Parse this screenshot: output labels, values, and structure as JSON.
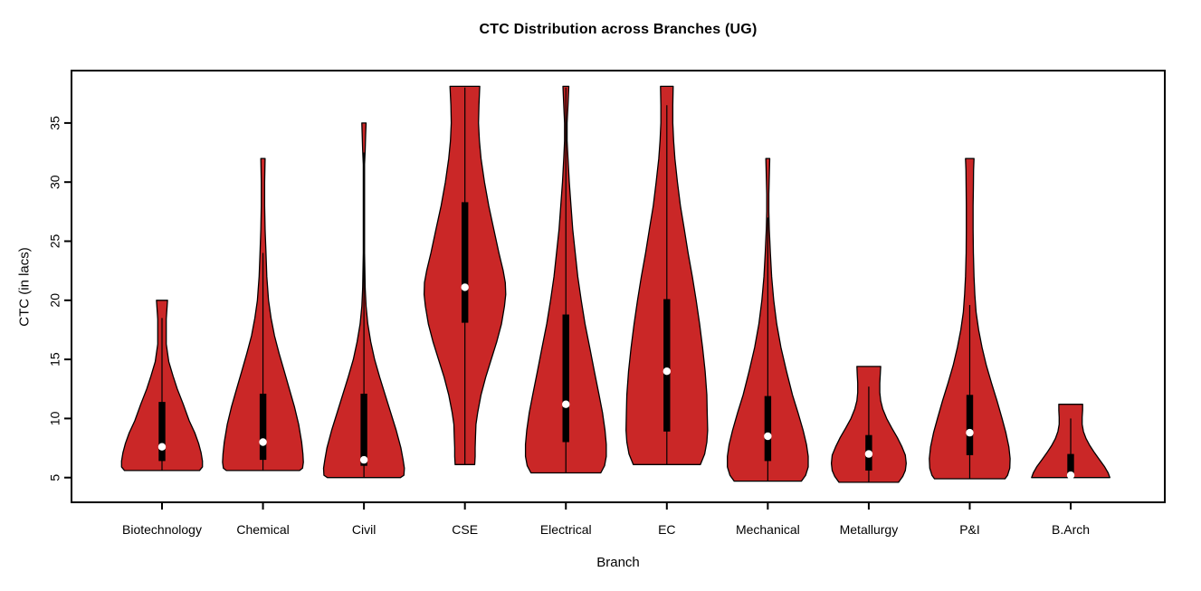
{
  "chart_data": {
    "type": "violin",
    "title": "CTC Distribution across Branches (UG)",
    "xlabel": "Branch",
    "ylabel": "CTC (in lacs)",
    "y_ticks": [
      5,
      10,
      15,
      20,
      25,
      30,
      35
    ],
    "ylim": [
      2.9,
      39.4
    ],
    "grid": false,
    "legend": "none",
    "violin_fill_color": "#CA2727",
    "outline_color": "#000000",
    "iqr_bar_color": "#000000",
    "median_dot_color": "#ffffff",
    "categories": [
      "Biotechnology",
      "Chemical",
      "Civil",
      "CSE",
      "Electrical",
      "EC",
      "Mechanical",
      "Metallurgy",
      "P&I",
      "B.Arch"
    ],
    "series": [
      {
        "branch": "Biotechnology",
        "min": 5.6,
        "max": 20.0,
        "q1": 6.4,
        "median": 7.6,
        "q3": 11.4,
        "whisker_low": 5.6,
        "whisker_high": 18.5,
        "profile": [
          [
            20.0,
            0.13
          ],
          [
            18.4,
            0.1
          ],
          [
            16.3,
            0.1
          ],
          [
            14.8,
            0.16
          ],
          [
            13.6,
            0.26
          ],
          [
            12.5,
            0.36
          ],
          [
            11.2,
            0.5
          ],
          [
            9.8,
            0.64
          ],
          [
            8.8,
            0.77
          ],
          [
            7.9,
            0.86
          ],
          [
            7.1,
            0.92
          ],
          [
            6.4,
            0.95
          ],
          [
            5.9,
            0.95
          ],
          [
            5.6,
            0.88
          ]
        ]
      },
      {
        "branch": "Chemical",
        "min": 5.6,
        "max": 32.0,
        "q1": 6.5,
        "median": 8.0,
        "q3": 12.1,
        "whisker_low": 5.6,
        "whisker_high": 24.0,
        "profile": [
          [
            32.0,
            0.05
          ],
          [
            30.0,
            0.04
          ],
          [
            28.0,
            0.04
          ],
          [
            26.0,
            0.05
          ],
          [
            24.0,
            0.07
          ],
          [
            22.0,
            0.09
          ],
          [
            20.0,
            0.13
          ],
          [
            18.5,
            0.19
          ],
          [
            17.0,
            0.27
          ],
          [
            15.5,
            0.38
          ],
          [
            14.0,
            0.5
          ],
          [
            12.5,
            0.62
          ],
          [
            11.0,
            0.74
          ],
          [
            9.5,
            0.84
          ],
          [
            8.0,
            0.91
          ],
          [
            7.0,
            0.94
          ],
          [
            6.3,
            0.95
          ],
          [
            5.8,
            0.93
          ],
          [
            5.6,
            0.86
          ]
        ]
      },
      {
        "branch": "Civil",
        "min": 5.0,
        "max": 35.0,
        "q1": 6.0,
        "median": 6.5,
        "q3": 12.1,
        "whisker_low": 5.0,
        "whisker_high": 32.5,
        "profile": [
          [
            35.0,
            0.05
          ],
          [
            34.0,
            0.04
          ],
          [
            32.7,
            0.03
          ],
          [
            31.5,
            0.015
          ],
          [
            28.0,
            0.015
          ],
          [
            24.0,
            0.015
          ],
          [
            21.0,
            0.03
          ],
          [
            19.5,
            0.05
          ],
          [
            18.0,
            0.09
          ],
          [
            16.5,
            0.16
          ],
          [
            15.0,
            0.25
          ],
          [
            13.5,
            0.37
          ],
          [
            12.0,
            0.5
          ],
          [
            10.5,
            0.63
          ],
          [
            9.0,
            0.76
          ],
          [
            7.5,
            0.87
          ],
          [
            6.5,
            0.92
          ],
          [
            5.8,
            0.95
          ],
          [
            5.2,
            0.94
          ],
          [
            5.0,
            0.86
          ]
        ]
      },
      {
        "branch": "CSE",
        "min": 6.1,
        "max": 38.1,
        "q1": 18.1,
        "median": 21.1,
        "q3": 28.3,
        "whisker_low": 6.1,
        "whisker_high": 38.0,
        "profile": [
          [
            38.1,
            0.35
          ],
          [
            36.5,
            0.33
          ],
          [
            35.0,
            0.32
          ],
          [
            33.5,
            0.34
          ],
          [
            32.0,
            0.38
          ],
          [
            30.0,
            0.46
          ],
          [
            28.0,
            0.56
          ],
          [
            26.0,
            0.68
          ],
          [
            24.0,
            0.8
          ],
          [
            22.5,
            0.9
          ],
          [
            21.5,
            0.95
          ],
          [
            20.5,
            0.96
          ],
          [
            19.5,
            0.93
          ],
          [
            18.0,
            0.86
          ],
          [
            16.5,
            0.75
          ],
          [
            15.0,
            0.62
          ],
          [
            13.5,
            0.49
          ],
          [
            12.0,
            0.38
          ],
          [
            10.5,
            0.3
          ],
          [
            9.5,
            0.26
          ],
          [
            8.5,
            0.25
          ],
          [
            7.5,
            0.24
          ],
          [
            6.8,
            0.24
          ],
          [
            6.1,
            0.23
          ]
        ]
      },
      {
        "branch": "Electrical",
        "min": 5.4,
        "max": 38.1,
        "q1": 8.0,
        "median": 11.2,
        "q3": 18.8,
        "whisker_low": 5.4,
        "whisker_high": 38.0,
        "profile": [
          [
            38.1,
            0.07
          ],
          [
            36.5,
            0.05
          ],
          [
            35.0,
            0.03
          ],
          [
            33.5,
            0.03
          ],
          [
            32.0,
            0.05
          ],
          [
            30.0,
            0.08
          ],
          [
            28.0,
            0.12
          ],
          [
            26.0,
            0.16
          ],
          [
            24.0,
            0.22
          ],
          [
            22.0,
            0.28
          ],
          [
            20.0,
            0.36
          ],
          [
            18.0,
            0.45
          ],
          [
            16.0,
            0.56
          ],
          [
            14.0,
            0.67
          ],
          [
            12.0,
            0.78
          ],
          [
            10.5,
            0.86
          ],
          [
            9.0,
            0.92
          ],
          [
            7.8,
            0.95
          ],
          [
            6.8,
            0.95
          ],
          [
            6.0,
            0.91
          ],
          [
            5.4,
            0.82
          ]
        ]
      },
      {
        "branch": "EC",
        "min": 6.1,
        "max": 38.1,
        "q1": 8.9,
        "median": 14.0,
        "q3": 20.1,
        "whisker_low": 6.1,
        "whisker_high": 36.5,
        "profile": [
          [
            38.1,
            0.15
          ],
          [
            36.5,
            0.14
          ],
          [
            35.0,
            0.14
          ],
          [
            33.5,
            0.16
          ],
          [
            32.0,
            0.19
          ],
          [
            30.0,
            0.25
          ],
          [
            28.0,
            0.32
          ],
          [
            26.0,
            0.41
          ],
          [
            24.0,
            0.5
          ],
          [
            22.0,
            0.6
          ],
          [
            20.0,
            0.69
          ],
          [
            18.0,
            0.77
          ],
          [
            16.0,
            0.84
          ],
          [
            14.0,
            0.9
          ],
          [
            12.0,
            0.94
          ],
          [
            10.5,
            0.95
          ],
          [
            9.0,
            0.96
          ],
          [
            8.0,
            0.94
          ],
          [
            7.0,
            0.89
          ],
          [
            6.1,
            0.79
          ]
        ]
      },
      {
        "branch": "Mechanical",
        "min": 4.7,
        "max": 32.0,
        "q1": 6.4,
        "median": 8.5,
        "q3": 11.9,
        "whisker_low": 4.7,
        "whisker_high": 27.0,
        "profile": [
          [
            32.0,
            0.045
          ],
          [
            30.5,
            0.035
          ],
          [
            29.0,
            0.025
          ],
          [
            27.5,
            0.025
          ],
          [
            26.0,
            0.035
          ],
          [
            24.0,
            0.06
          ],
          [
            22.0,
            0.09
          ],
          [
            20.0,
            0.14
          ],
          [
            18.0,
            0.21
          ],
          [
            16.0,
            0.31
          ],
          [
            14.0,
            0.44
          ],
          [
            12.0,
            0.58
          ],
          [
            10.5,
            0.71
          ],
          [
            9.0,
            0.83
          ],
          [
            7.8,
            0.91
          ],
          [
            6.8,
            0.95
          ],
          [
            5.9,
            0.95
          ],
          [
            5.2,
            0.89
          ],
          [
            4.7,
            0.79
          ]
        ]
      },
      {
        "branch": "Metallurgy",
        "min": 4.6,
        "max": 14.4,
        "q1": 5.6,
        "median": 7.0,
        "q3": 8.6,
        "whisker_low": 4.6,
        "whisker_high": 12.7,
        "profile": [
          [
            14.4,
            0.28
          ],
          [
            13.7,
            0.27
          ],
          [
            13.0,
            0.26
          ],
          [
            12.2,
            0.26
          ],
          [
            11.5,
            0.28
          ],
          [
            10.8,
            0.33
          ],
          [
            10.0,
            0.42
          ],
          [
            9.2,
            0.54
          ],
          [
            8.4,
            0.67
          ],
          [
            7.6,
            0.78
          ],
          [
            6.9,
            0.86
          ],
          [
            6.2,
            0.88
          ],
          [
            5.6,
            0.86
          ],
          [
            5.1,
            0.8
          ],
          [
            4.6,
            0.7
          ]
        ]
      },
      {
        "branch": "P&I",
        "min": 4.9,
        "max": 32.0,
        "q1": 6.9,
        "median": 8.8,
        "q3": 12.0,
        "whisker_low": 4.9,
        "whisker_high": 19.6,
        "profile": [
          [
            32.0,
            0.1
          ],
          [
            31.0,
            0.09
          ],
          [
            29.5,
            0.085
          ],
          [
            28.0,
            0.08
          ],
          [
            26.0,
            0.08
          ],
          [
            24.0,
            0.085
          ],
          [
            22.0,
            0.1
          ],
          [
            20.5,
            0.12
          ],
          [
            19.0,
            0.15
          ],
          [
            17.5,
            0.21
          ],
          [
            16.0,
            0.29
          ],
          [
            14.5,
            0.39
          ],
          [
            13.0,
            0.51
          ],
          [
            11.5,
            0.64
          ],
          [
            10.0,
            0.76
          ],
          [
            8.8,
            0.85
          ],
          [
            7.6,
            0.92
          ],
          [
            6.6,
            0.95
          ],
          [
            5.8,
            0.94
          ],
          [
            5.2,
            0.89
          ],
          [
            4.9,
            0.83
          ]
        ]
      },
      {
        "branch": "B.Arch",
        "min": 5.0,
        "max": 11.2,
        "q1": 5.1,
        "median": 5.2,
        "q3": 7.0,
        "whisker_low": 5.0,
        "whisker_high": 10.0,
        "profile": [
          [
            11.2,
            0.28
          ],
          [
            10.7,
            0.28
          ],
          [
            10.1,
            0.27
          ],
          [
            9.5,
            0.27
          ],
          [
            8.9,
            0.3
          ],
          [
            8.3,
            0.36
          ],
          [
            7.7,
            0.45
          ],
          [
            7.1,
            0.56
          ],
          [
            6.5,
            0.68
          ],
          [
            5.9,
            0.8
          ],
          [
            5.4,
            0.88
          ],
          [
            5.0,
            0.92
          ]
        ]
      }
    ]
  }
}
